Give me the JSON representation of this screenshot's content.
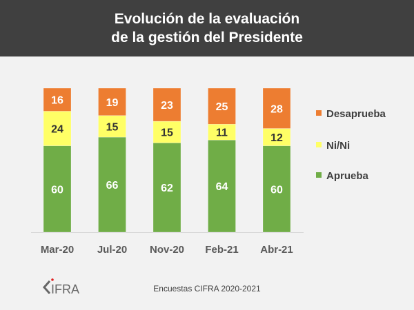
{
  "title": {
    "line1": "Evolución de la evaluación",
    "line2": "de la gestión del Presidente"
  },
  "chart_data": {
    "type": "bar",
    "stacked": true,
    "categories": [
      "Mar-20",
      "Jul-20",
      "Nov-20",
      "Feb-21",
      "Abr-21"
    ],
    "series": [
      {
        "name": "Aprueba",
        "color": "#70ad47",
        "label_color": "#ffffff",
        "values": [
          60,
          66,
          62,
          64,
          60
        ]
      },
      {
        "name": "Ni/Ni",
        "color": "#ffff66",
        "label_color": "#333333",
        "values": [
          24,
          15,
          15,
          11,
          12
        ]
      },
      {
        "name": "Desaprueba",
        "color": "#ed7d31",
        "label_color": "#ffffff",
        "values": [
          16,
          19,
          23,
          25,
          28
        ]
      }
    ],
    "ylim": [
      0,
      100
    ],
    "grid": false,
    "legend_position": "right"
  },
  "footer": {
    "source": "Encuestas CIFRA 2020-2021",
    "logo_text": "CIFRA"
  }
}
